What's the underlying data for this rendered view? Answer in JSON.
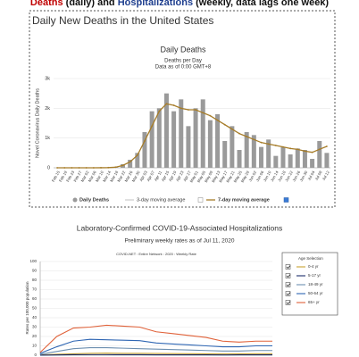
{
  "heading": [
    {
      "text": "Deaths",
      "color": "#c00000"
    },
    {
      "text": " (daily) and ",
      "color": "#111111"
    },
    {
      "text": "Hospitalizations",
      "color": "#1f3f8f"
    },
    {
      "text": " (weekly, data lags one week)",
      "color": "#111111"
    }
  ],
  "chart_data": [
    {
      "type": "bar",
      "panel_title": "Daily New Deaths in the United States",
      "title": "Daily Deaths",
      "subtitle": "Deaths per Day",
      "note": "Data as of 0:00 GMT+8",
      "ylabel": "Novel Coronavirus Daily Deaths",
      "categories": [
        "Feb 15",
        "Feb 19",
        "Feb 23",
        "Feb 27",
        "Mar 02",
        "Mar 06",
        "Mar 10",
        "Mar 14",
        "Mar 18",
        "Mar 22",
        "Mar 26",
        "Mar 30",
        "Apr 03",
        "Apr 07",
        "Apr 11",
        "Apr 15",
        "Apr 19",
        "Apr 23",
        "Apr 27",
        "May 01",
        "May 05",
        "May 09",
        "May 13",
        "May 17",
        "May 21",
        "May 25",
        "May 29",
        "Jun 02",
        "Jun 06",
        "Jun 10",
        "Jun 14",
        "Jun 18",
        "Jun 22",
        "Jun 26",
        "Jun 30",
        "Jul 04",
        "Jul 08",
        "Jul 12"
      ],
      "series": [
        {
          "name": "Daily Deaths",
          "type": "bar",
          "color": "#9a9a9a",
          "values": [
            0,
            0,
            0,
            0,
            0,
            1,
            3,
            10,
            30,
            120,
            270,
            500,
            1200,
            1900,
            2000,
            2500,
            1900,
            2300,
            1400,
            2000,
            2300,
            1600,
            1800,
            900,
            1400,
            600,
            1200,
            1100,
            700,
            950,
            400,
            700,
            450,
            650,
            600,
            300,
            900,
            500
          ]
        },
        {
          "name": "7-day moving average",
          "type": "line",
          "color": "#a67c28",
          "values": [
            0,
            0,
            0,
            0,
            0,
            0,
            2,
            5,
            20,
            80,
            200,
            420,
            900,
            1400,
            1900,
            2150,
            2100,
            2000,
            1950,
            1950,
            1850,
            1750,
            1600,
            1450,
            1300,
            1150,
            1050,
            950,
            850,
            800,
            750,
            700,
            650,
            620,
            560,
            520,
            620,
            720
          ]
        }
      ],
      "inactive_legend": "3-day moving average",
      "ylim": [
        0,
        3000
      ],
      "yticks": [
        0,
        {
          "value": 1000,
          "label": "1k"
        },
        {
          "value": 2000,
          "label": "2k"
        },
        {
          "value": 3000,
          "label": "3k"
        }
      ],
      "grid": true
    },
    {
      "type": "line",
      "title": "Laboratory-Confirmed COVID-19-Associated Hospitalizations",
      "subtitle": "Preliminary weekly rates as of Jul 11, 2020",
      "note": "COVID-NET : Entire Network : 2020 : Weekly Rate",
      "ylabel": "Rates per 100,000 population",
      "legend_title": "Age Selection",
      "categories": [
        null,
        null,
        null,
        null,
        null,
        null,
        null,
        null,
        null,
        null,
        null,
        null,
        null,
        null,
        null
      ],
      "series": [
        {
          "name": "0-4 yr",
          "color": "#c8a232",
          "values": [
            0.3,
            1,
            1.5,
            2,
            2.2,
            2,
            2,
            1.8,
            1.7,
            1.6,
            1.5,
            1.4,
            1.5,
            1.6,
            1.6
          ]
        },
        {
          "name": "5-17 yr",
          "color": "#1c2d6b",
          "values": [
            0.1,
            0.3,
            0.5,
            0.6,
            0.6,
            0.5,
            0.5,
            0.4,
            0.4,
            0.4,
            0.4,
            0.3,
            0.4,
            0.4,
            0.4
          ]
        },
        {
          "name": "18-49 yr",
          "color": "#6d8fb0",
          "values": [
            1,
            4,
            7,
            8,
            8,
            7.5,
            7,
            6.5,
            6,
            5.5,
            5,
            4.5,
            4.5,
            5,
            5
          ]
        },
        {
          "name": "50-64 yr",
          "color": "#2f66b3",
          "values": [
            2,
            9,
            15,
            17,
            16.5,
            16,
            15.5,
            13,
            12,
            11,
            10,
            9,
            9,
            10,
            10
          ]
        },
        {
          "name": "65+ yr",
          "color": "#e0623a",
          "values": [
            3,
            20,
            29,
            30,
            32,
            31,
            30,
            25,
            23,
            21,
            19,
            15,
            14,
            15,
            15
          ]
        }
      ],
      "ylim": [
        0,
        100
      ],
      "yticks": [
        0,
        10,
        20,
        30,
        40,
        50,
        60,
        70,
        80,
        90,
        100
      ],
      "grid": true
    }
  ]
}
